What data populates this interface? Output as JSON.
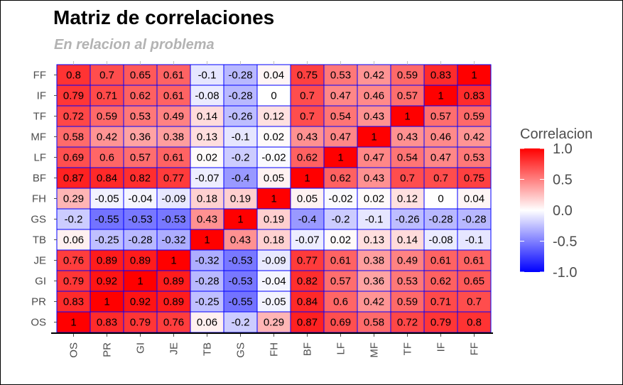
{
  "chart_data": {
    "type": "heatmap",
    "title": "Matriz de correlaciones",
    "subtitle": "En relacion al problema",
    "x_labels": [
      "OS",
      "PR",
      "GI",
      "JE",
      "TB",
      "GS",
      "FH",
      "BF",
      "LF",
      "MF",
      "TF",
      "IF",
      "FF"
    ],
    "y_labels": [
      "FF",
      "IF",
      "TF",
      "MF",
      "LF",
      "BF",
      "FH",
      "GS",
      "TB",
      "JE",
      "GI",
      "PR",
      "OS"
    ],
    "values": [
      [
        "0.8",
        "0.7",
        "0.65",
        "0.61",
        "-0.1",
        "-0.28",
        "0.04",
        "0.75",
        "0.53",
        "0.42",
        "0.59",
        "0.83",
        "1"
      ],
      [
        "0.79",
        "0.71",
        "0.62",
        "0.61",
        "-0.08",
        "-0.28",
        "0",
        "0.7",
        "0.47",
        "0.46",
        "0.57",
        "1",
        "0.83"
      ],
      [
        "0.72",
        "0.59",
        "0.53",
        "0.49",
        "0.14",
        "-0.26",
        "0.12",
        "0.7",
        "0.54",
        "0.43",
        "1",
        "0.57",
        "0.59"
      ],
      [
        "0.58",
        "0.42",
        "0.36",
        "0.38",
        "0.13",
        "-0.1",
        "0.02",
        "0.43",
        "0.47",
        "1",
        "0.43",
        "0.46",
        "0.42"
      ],
      [
        "0.69",
        "0.6",
        "0.57",
        "0.61",
        "0.02",
        "-0.2",
        "-0.02",
        "0.62",
        "1",
        "0.47",
        "0.54",
        "0.47",
        "0.53"
      ],
      [
        "0.87",
        "0.84",
        "0.82",
        "0.77",
        "-0.07",
        "-0.4",
        "0.05",
        "1",
        "0.62",
        "0.43",
        "0.7",
        "0.7",
        "0.75"
      ],
      [
        "0.29",
        "-0.05",
        "-0.04",
        "-0.09",
        "0.18",
        "0.19",
        "1",
        "0.05",
        "-0.02",
        "0.02",
        "0.12",
        "0",
        "0.04"
      ],
      [
        "-0.2",
        "-0.55",
        "-0.53",
        "-0.53",
        "0.43",
        "1",
        "0.19",
        "-0.4",
        "-0.2",
        "-0.1",
        "-0.26",
        "-0.28",
        "-0.28"
      ],
      [
        "0.06",
        "-0.25",
        "-0.28",
        "-0.32",
        "1",
        "0.43",
        "0.18",
        "-0.07",
        "0.02",
        "0.13",
        "0.14",
        "-0.08",
        "-0.1"
      ],
      [
        "0.76",
        "0.89",
        "0.89",
        "1",
        "-0.32",
        "-0.53",
        "-0.09",
        "0.77",
        "0.61",
        "0.38",
        "0.49",
        "0.61",
        "0.61"
      ],
      [
        "0.79",
        "0.92",
        "1",
        "0.89",
        "-0.28",
        "-0.53",
        "-0.04",
        "0.82",
        "0.57",
        "0.36",
        "0.53",
        "0.62",
        "0.65"
      ],
      [
        "0.83",
        "1",
        "0.92",
        "0.89",
        "-0.25",
        "-0.55",
        "-0.05",
        "0.84",
        "0.6",
        "0.42",
        "0.59",
        "0.71",
        "0.7"
      ],
      [
        "1",
        "0.83",
        "0.79",
        "0.76",
        "0.06",
        "-0.2",
        "0.29",
        "0.87",
        "0.69",
        "0.58",
        "0.72",
        "0.79",
        "0.8"
      ]
    ],
    "value_range": [
      -1,
      1
    ],
    "color_scale": {
      "low": "#0000ff",
      "mid": "#ffffff",
      "high": "#ff0000"
    },
    "cell_border_color": "#0000ff",
    "legend": {
      "title": "Correlacion",
      "labels": [
        "1.0",
        "0.5",
        "0.0",
        "-0.5",
        "-1.0"
      ],
      "label_values": [
        1,
        0.5,
        0,
        -0.5,
        -1
      ],
      "placement": "right"
    },
    "x_tick_rotation": "vertical",
    "grid": false
  }
}
